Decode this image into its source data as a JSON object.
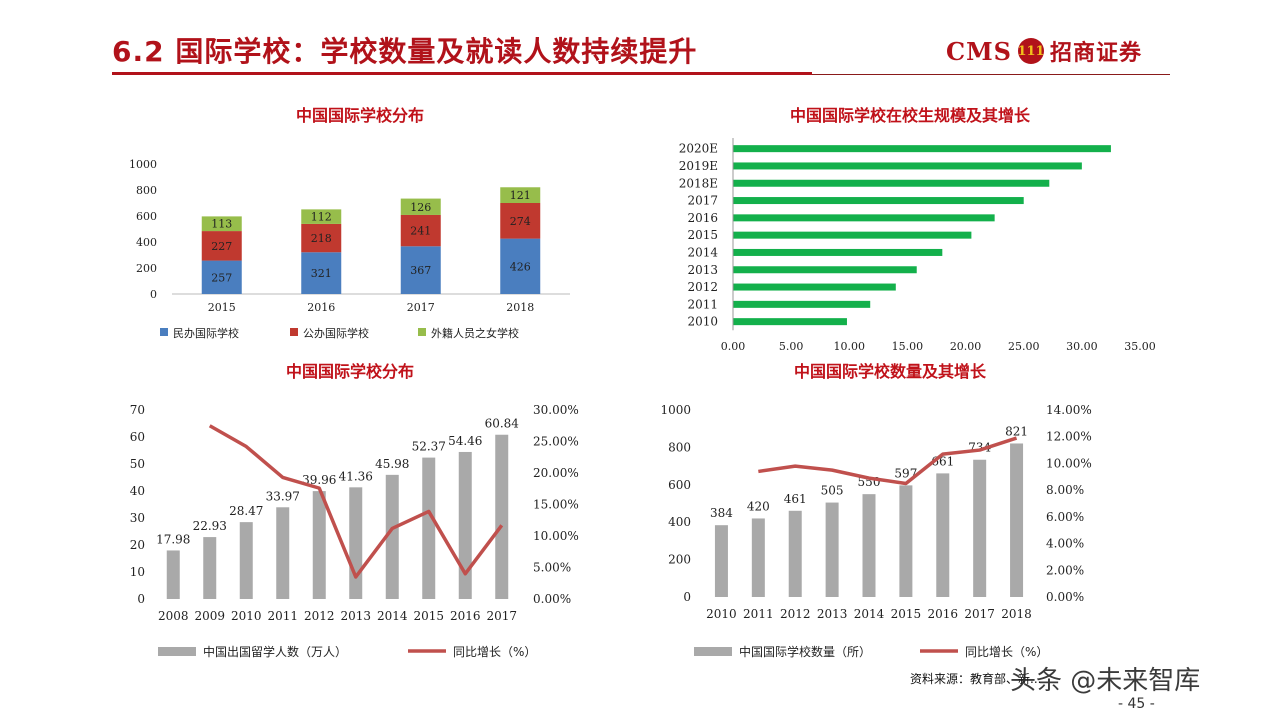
{
  "header": {
    "title": "6.2 国际学校：学校数量及就读人数持续提升",
    "logo_text": "CMS",
    "logo_mark": "111",
    "logo_cn": "招商证券"
  },
  "footer": {
    "source": "资料来源：教育部、新...",
    "watermark": "头条 @未来智库",
    "page": "- 45 -"
  },
  "colors": {
    "red": "#c0121a",
    "blue": "#4a7ebf",
    "bar_red": "#c0392f",
    "green": "#97bd4b",
    "bright_green": "#13b04b",
    "gray": "#a9a9a9",
    "line_red": "#c0504d"
  },
  "chart_data": [
    {
      "type": "bar",
      "stacked": true,
      "title": "中国国际学校分布",
      "categories": [
        "2015",
        "2016",
        "2017",
        "2018"
      ],
      "series": [
        {
          "name": "民办国际学校",
          "values": [
            257,
            321,
            367,
            426
          ]
        },
        {
          "name": "公办国际学校",
          "values": [
            227,
            218,
            241,
            274
          ]
        },
        {
          "name": "外籍人员之女学校",
          "values": [
            113,
            112,
            126,
            121
          ]
        }
      ],
      "ylim": [
        0,
        1000
      ],
      "yticks": [
        0,
        200,
        400,
        600,
        800,
        1000
      ],
      "legend": "bottom"
    },
    {
      "type": "bar",
      "orientation": "horizontal",
      "title": "中国国际学校在校生规模及其增长",
      "categories": [
        "2020E",
        "2019E",
        "2018E",
        "2017",
        "2016",
        "2015",
        "2014",
        "2013",
        "2012",
        "2011",
        "2010"
      ],
      "values": [
        32.5,
        30.0,
        27.2,
        25.0,
        22.5,
        20.5,
        18.0,
        15.8,
        14.0,
        11.8,
        9.8
      ],
      "xlim": [
        0,
        35
      ],
      "xticks": [
        "0.00",
        "5.00",
        "10.00",
        "15.00",
        "20.00",
        "25.00",
        "30.00",
        "35.00"
      ]
    },
    {
      "type": "bar+line",
      "title": "中国国际学校分布",
      "categories": [
        "2008",
        "2009",
        "2010",
        "2011",
        "2012",
        "2013",
        "2014",
        "2015",
        "2016",
        "2017"
      ],
      "series": [
        {
          "name": "中国出国留学人数（万人）",
          "type": "bar",
          "axis": "left",
          "values": [
            17.98,
            22.93,
            28.47,
            33.97,
            39.96,
            41.36,
            45.98,
            52.37,
            54.46,
            60.84
          ]
        },
        {
          "name": "同比增长（%）",
          "type": "line",
          "axis": "right",
          "values": [
            null,
            27.5,
            24.2,
            19.3,
            17.6,
            3.5,
            11.2,
            13.9,
            4.0,
            11.7
          ]
        }
      ],
      "ylim": [
        0,
        70
      ],
      "yticks": [
        0,
        10,
        20,
        30,
        40,
        50,
        60,
        70
      ],
      "y2lim": [
        0,
        30
      ],
      "y2ticks": [
        "0.00%",
        "5.00%",
        "10.00%",
        "15.00%",
        "20.00%",
        "25.00%",
        "30.00%"
      ],
      "legend": "bottom"
    },
    {
      "type": "bar+line",
      "title": "中国国际学校数量及其增长",
      "categories": [
        "2010",
        "2011",
        "2012",
        "2013",
        "2014",
        "2015",
        "2016",
        "2017",
        "2018"
      ],
      "series": [
        {
          "name": "中国国际学校数量（所）",
          "type": "bar",
          "axis": "left",
          "values": [
            384,
            420,
            461,
            505,
            550,
            597,
            661,
            734,
            821
          ]
        },
        {
          "name": "同比增长（%）",
          "type": "line",
          "axis": "right",
          "values": [
            null,
            9.4,
            9.8,
            9.5,
            8.9,
            8.5,
            10.7,
            11.0,
            11.9
          ]
        }
      ],
      "ylim": [
        0,
        1000
      ],
      "yticks": [
        0,
        200,
        400,
        600,
        800,
        1000
      ],
      "y2lim": [
        0,
        14
      ],
      "y2ticks": [
        "0.00%",
        "2.00%",
        "4.00%",
        "6.00%",
        "8.00%",
        "10.00%",
        "12.00%",
        "14.00%"
      ],
      "legend": "bottom"
    }
  ]
}
